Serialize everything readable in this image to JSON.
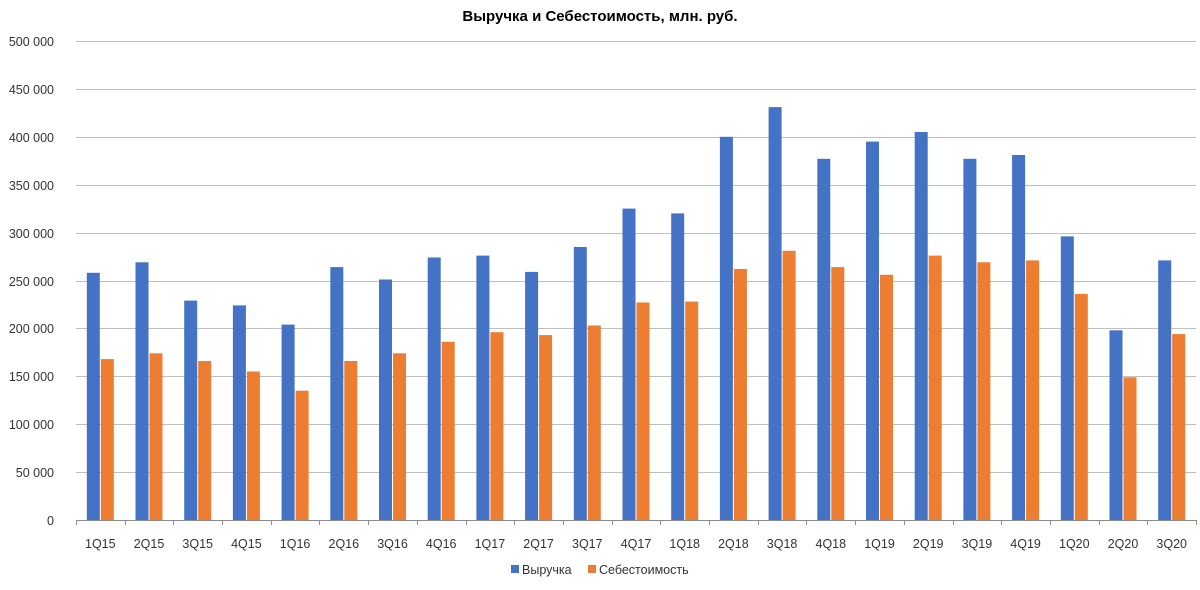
{
  "chart_data": {
    "type": "bar",
    "title": "Выручка и Себестоимость, млн. руб.",
    "xlabel": "",
    "ylabel": "",
    "categories": [
      "1Q15",
      "2Q15",
      "3Q15",
      "4Q15",
      "1Q16",
      "2Q16",
      "3Q16",
      "4Q16",
      "1Q17",
      "2Q17",
      "3Q17",
      "4Q17",
      "1Q18",
      "2Q18",
      "3Q18",
      "4Q18",
      "1Q19",
      "2Q19",
      "3Q19",
      "4Q19",
      "1Q20",
      "2Q20",
      "3Q20"
    ],
    "series": [
      {
        "name": "Выручка",
        "color": "#4472C4",
        "values": [
          258000,
          269000,
          229000,
          224000,
          204000,
          264000,
          251000,
          274000,
          276000,
          259000,
          285000,
          325000,
          320000,
          400000,
          431000,
          377000,
          395000,
          405000,
          377000,
          381000,
          296000,
          198000,
          271000
        ]
      },
      {
        "name": "Себестоимость",
        "color": "#ED7D31",
        "values": [
          168000,
          174000,
          166000,
          155000,
          135000,
          166000,
          174000,
          186000,
          196000,
          193000,
          203000,
          227000,
          228000,
          262000,
          281000,
          264000,
          256000,
          276000,
          269000,
          271000,
          236000,
          149000,
          194000
        ]
      }
    ],
    "ylim": [
      0,
      500000
    ],
    "y_ticks": [
      "0",
      "50 000",
      "100 000",
      "150 000",
      "200 000",
      "250 000",
      "300 000",
      "350 000",
      "400 000",
      "450 000",
      "500 000"
    ],
    "grid": true,
    "legend_position": "bottom"
  }
}
